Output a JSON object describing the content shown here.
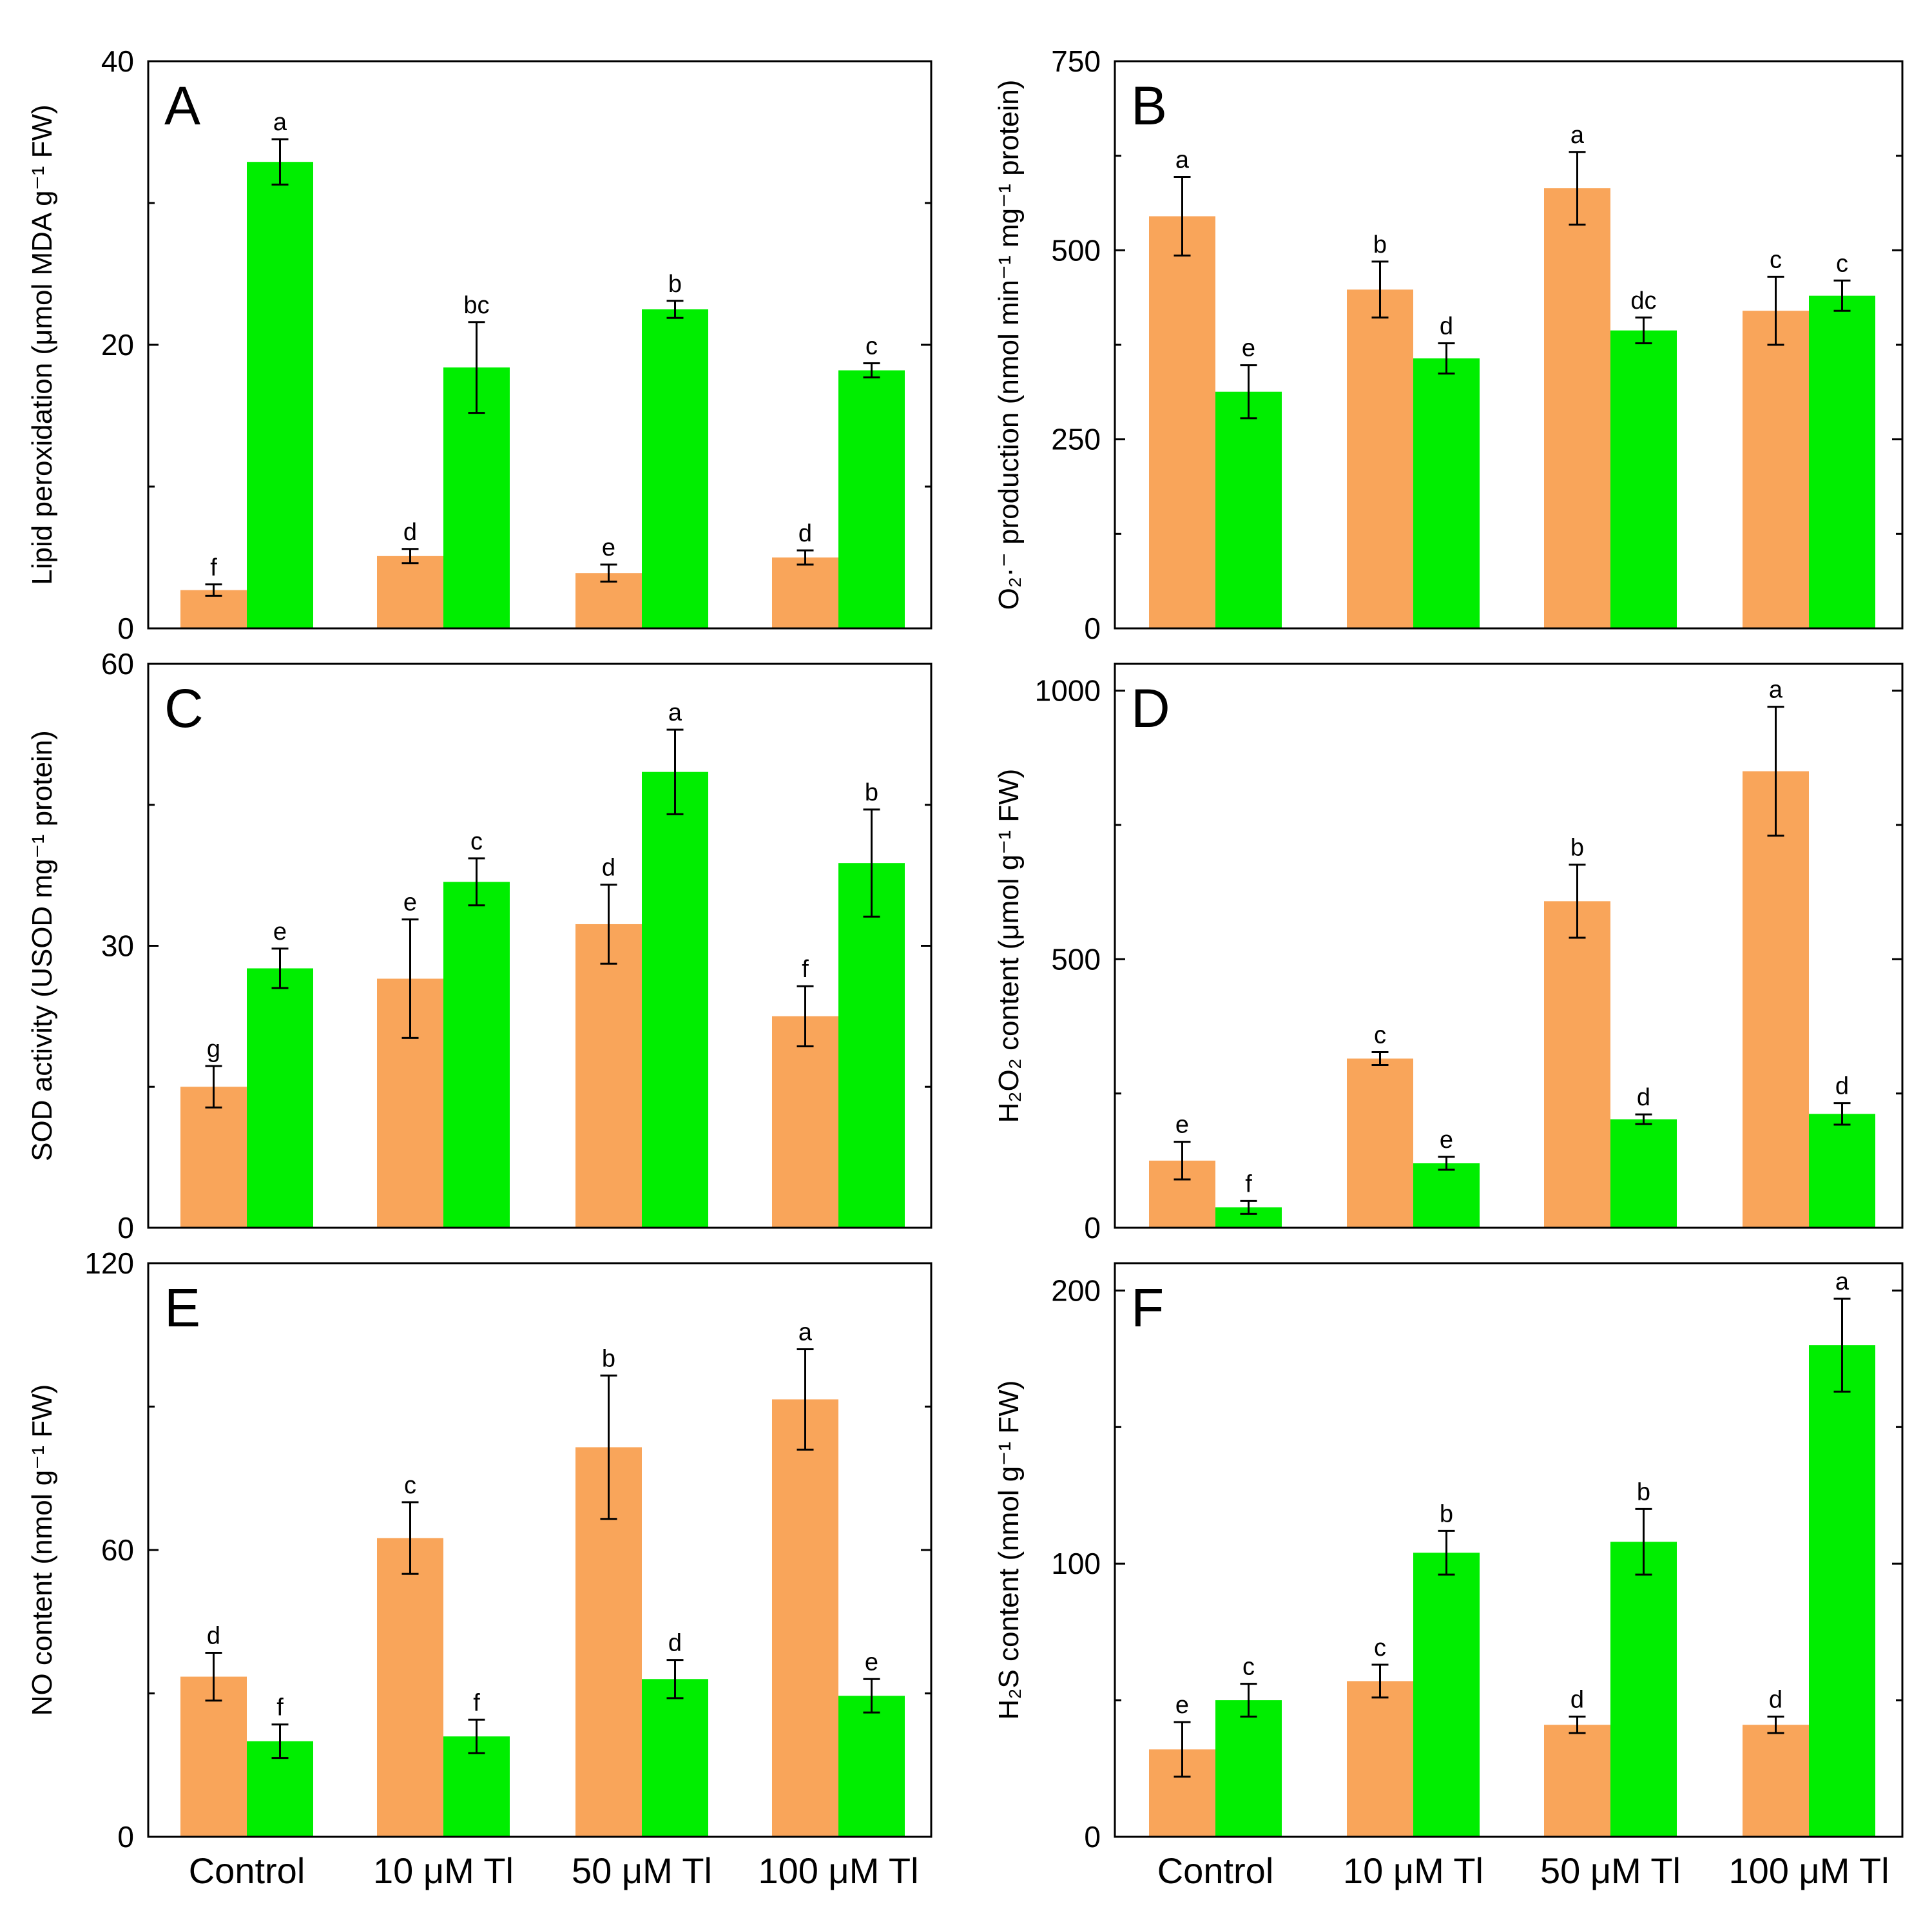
{
  "colors": {
    "series_1": "#F9A55A",
    "series_2": "#00EE00",
    "axis": "#000000",
    "background": "#FFFFFF"
  },
  "shared_categories": [
    "Control",
    "10 μM Tl",
    "50 μM Tl",
    "100 μM Tl"
  ],
  "chart_data": [
    {
      "panel": "A",
      "type": "bar",
      "categories": [
        "Control",
        "10 μM Tl",
        "50 μM Tl",
        "100 μM Tl"
      ],
      "series": [
        {
          "name": "orange",
          "values": [
            2.7,
            5.1,
            3.9,
            5.0
          ],
          "errors": [
            0.4,
            0.5,
            0.6,
            0.5
          ],
          "letters": [
            "f",
            "d",
            "e",
            "d"
          ]
        },
        {
          "name": "green",
          "values": [
            32.9,
            18.4,
            22.5,
            18.2
          ],
          "errors": [
            1.6,
            3.2,
            0.6,
            0.5
          ],
          "letters": [
            "a",
            "bc",
            "b",
            "c"
          ]
        }
      ],
      "ylabel": "Lipid peroxidation (μmol MDA g⁻¹ FW)",
      "ylim": [
        0,
        40
      ],
      "yticks": [
        0,
        20,
        40
      ]
    },
    {
      "panel": "B",
      "type": "bar",
      "categories": [
        "Control",
        "10 μM Tl",
        "50 μM Tl",
        "100 μM Tl"
      ],
      "series": [
        {
          "name": "orange",
          "values": [
            545,
            448,
            582,
            420
          ],
          "errors": [
            52,
            37,
            48,
            45
          ],
          "letters": [
            "a",
            "b",
            "a",
            "c"
          ]
        },
        {
          "name": "green",
          "values": [
            313,
            357,
            394,
            440
          ],
          "errors": [
            35,
            20,
            17,
            20
          ],
          "letters": [
            "e",
            "d",
            "dc",
            "c"
          ]
        }
      ],
      "ylabel": "O₂·⁻ production (nmol min⁻¹ mg⁻¹ protein)",
      "ylim": [
        0,
        750
      ],
      "yticks": [
        0,
        250,
        500,
        750
      ]
    },
    {
      "panel": "C",
      "type": "bar",
      "categories": [
        "Control",
        "10 μM Tl",
        "50 μM Tl",
        "100 μM Tl"
      ],
      "series": [
        {
          "name": "orange",
          "values": [
            15.0,
            26.5,
            32.3,
            22.5
          ],
          "errors": [
            2.2,
            6.3,
            4.2,
            3.2
          ],
          "letters": [
            "g",
            "e",
            "d",
            "f"
          ]
        },
        {
          "name": "green",
          "values": [
            27.6,
            36.8,
            48.5,
            38.8
          ],
          "errors": [
            2.1,
            2.5,
            4.5,
            5.7
          ],
          "letters": [
            "e",
            "c",
            "a",
            "b"
          ]
        }
      ],
      "ylabel": "SOD activity (USOD mg⁻¹ protein)",
      "ylim": [
        0,
        60
      ],
      "yticks": [
        0,
        30,
        60
      ]
    },
    {
      "panel": "D",
      "type": "bar",
      "categories": [
        "Control",
        "10 μM Tl",
        "50 μM Tl",
        "100 μM Tl"
      ],
      "series": [
        {
          "name": "orange",
          "values": [
            125,
            315,
            608,
            850
          ],
          "errors": [
            35,
            12,
            68,
            120
          ],
          "letters": [
            "e",
            "c",
            "b",
            "a"
          ]
        },
        {
          "name": "green",
          "values": [
            38,
            120,
            202,
            212
          ],
          "errors": [
            12,
            12,
            9,
            20
          ],
          "letters": [
            "f",
            "e",
            "d",
            "d"
          ]
        }
      ],
      "ylabel": "H₂O₂ content (μmol g⁻¹ FW)",
      "ylim": [
        0,
        1050
      ],
      "yticks": [
        0,
        500,
        1000
      ]
    },
    {
      "panel": "E",
      "type": "bar",
      "categories": [
        "Control",
        "10 μM Tl",
        "50 μM Tl",
        "100 μM Tl"
      ],
      "series": [
        {
          "name": "orange",
          "values": [
            33.5,
            62.5,
            81.5,
            91.5
          ],
          "errors": [
            5.0,
            7.5,
            15.0,
            10.5
          ],
          "letters": [
            "d",
            "c",
            "b",
            "a"
          ]
        },
        {
          "name": "green",
          "values": [
            20.0,
            21.0,
            33.0,
            29.5
          ],
          "errors": [
            3.5,
            3.5,
            4.0,
            3.5
          ],
          "letters": [
            "f",
            "f",
            "d",
            "e"
          ]
        }
      ],
      "ylabel": "NO content (nmol g⁻¹ FW)",
      "ylim": [
        0,
        120
      ],
      "yticks": [
        0,
        60,
        120
      ]
    },
    {
      "panel": "F",
      "type": "bar",
      "categories": [
        "Control",
        "10 μM Tl",
        "50 μM Tl",
        "100 μM Tl"
      ],
      "series": [
        {
          "name": "orange",
          "values": [
            32,
            57,
            41,
            41
          ],
          "errors": [
            10,
            6,
            3,
            3
          ],
          "letters": [
            "e",
            "c",
            "d",
            "d"
          ]
        },
        {
          "name": "green",
          "values": [
            50,
            104,
            108,
            180
          ],
          "errors": [
            6,
            8,
            12,
            17
          ],
          "letters": [
            "c",
            "b",
            "b",
            "a"
          ]
        }
      ],
      "ylabel": "H₂S content (nmol g⁻¹ FW)",
      "ylim": [
        0,
        210
      ],
      "yticks": [
        0,
        100,
        200
      ]
    }
  ]
}
